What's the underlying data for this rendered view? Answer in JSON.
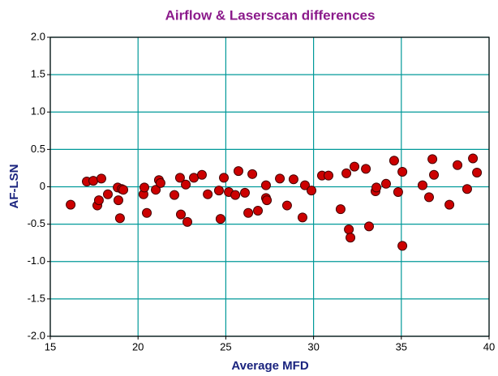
{
  "chart_data": {
    "type": "scatter",
    "title": "Airflow & Laserscan differences",
    "xlabel": "Average MFD",
    "ylabel": "AF-LSN",
    "color": "#cc0000",
    "grid": true,
    "xlim": [
      15,
      40
    ],
    "xticks": [
      15,
      20,
      25,
      30,
      35,
      40
    ],
    "ylim": [
      -2,
      2
    ],
    "yticks": [
      {
        "value": 2,
        "label": "2.0"
      },
      1.5,
      {
        "value": 1,
        "label": "1.0"
      },
      0.5,
      0,
      -0.5,
      {
        "value": -1,
        "label": "-1.0"
      },
      -1.5,
      {
        "value": -2,
        "label": "-2.0"
      }
    ],
    "x": [
      16.16,
      17.08,
      17.45,
      17.91,
      17.68,
      17.77,
      18.28,
      18.84,
      18.88,
      19.07,
      18.97,
      19.16,
      20.31,
      20.36,
      20.5,
      21.01,
      21.19,
      21.28,
      22.07,
      22.39,
      22.44,
      22.72,
      22.81,
      23.18,
      23.64,
      23.97,
      24.61,
      24.7,
      24.89,
      25.17,
      25.54,
      25.72,
      26.09,
      26.28,
      26.51,
      26.83,
      27.29,
      27.29,
      27.34,
      28.08,
      28.49,
      28.86,
      29.37,
      29.51,
      29.88,
      30.48,
      30.85,
      31.54,
      31.87,
      32.01,
      32.1,
      32.33,
      32.98,
      33.16,
      33.53,
      33.58,
      34.13,
      34.59,
      34.82,
      35.06,
      35.06,
      36.21,
      36.58,
      36.77,
      36.86,
      37.74,
      38.2,
      38.75,
      39.08,
      39.31
    ],
    "values": [
      -0.24,
      0.07,
      0.08,
      0.11,
      -0.25,
      -0.18,
      -0.1,
      -0.01,
      -0.18,
      -0.03,
      -0.42,
      -0.04,
      -0.1,
      -0.01,
      -0.35,
      -0.04,
      0.09,
      0.05,
      -0.11,
      0.12,
      -0.37,
      0.03,
      -0.47,
      0.12,
      0.16,
      -0.1,
      -0.05,
      -0.43,
      0.12,
      -0.07,
      -0.11,
      0.21,
      -0.08,
      -0.35,
      0.17,
      -0.32,
      0.02,
      -0.15,
      -0.18,
      0.11,
      -0.25,
      0.1,
      -0.41,
      0.02,
      -0.05,
      0.15,
      0.15,
      -0.3,
      0.18,
      -0.57,
      -0.68,
      0.27,
      0.24,
      -0.53,
      -0.06,
      -0.01,
      0.04,
      0.35,
      -0.07,
      0.2,
      -0.79,
      0.02,
      -0.14,
      0.37,
      0.16,
      -0.24,
      0.29,
      -0.03,
      0.38,
      0.19
    ]
  }
}
